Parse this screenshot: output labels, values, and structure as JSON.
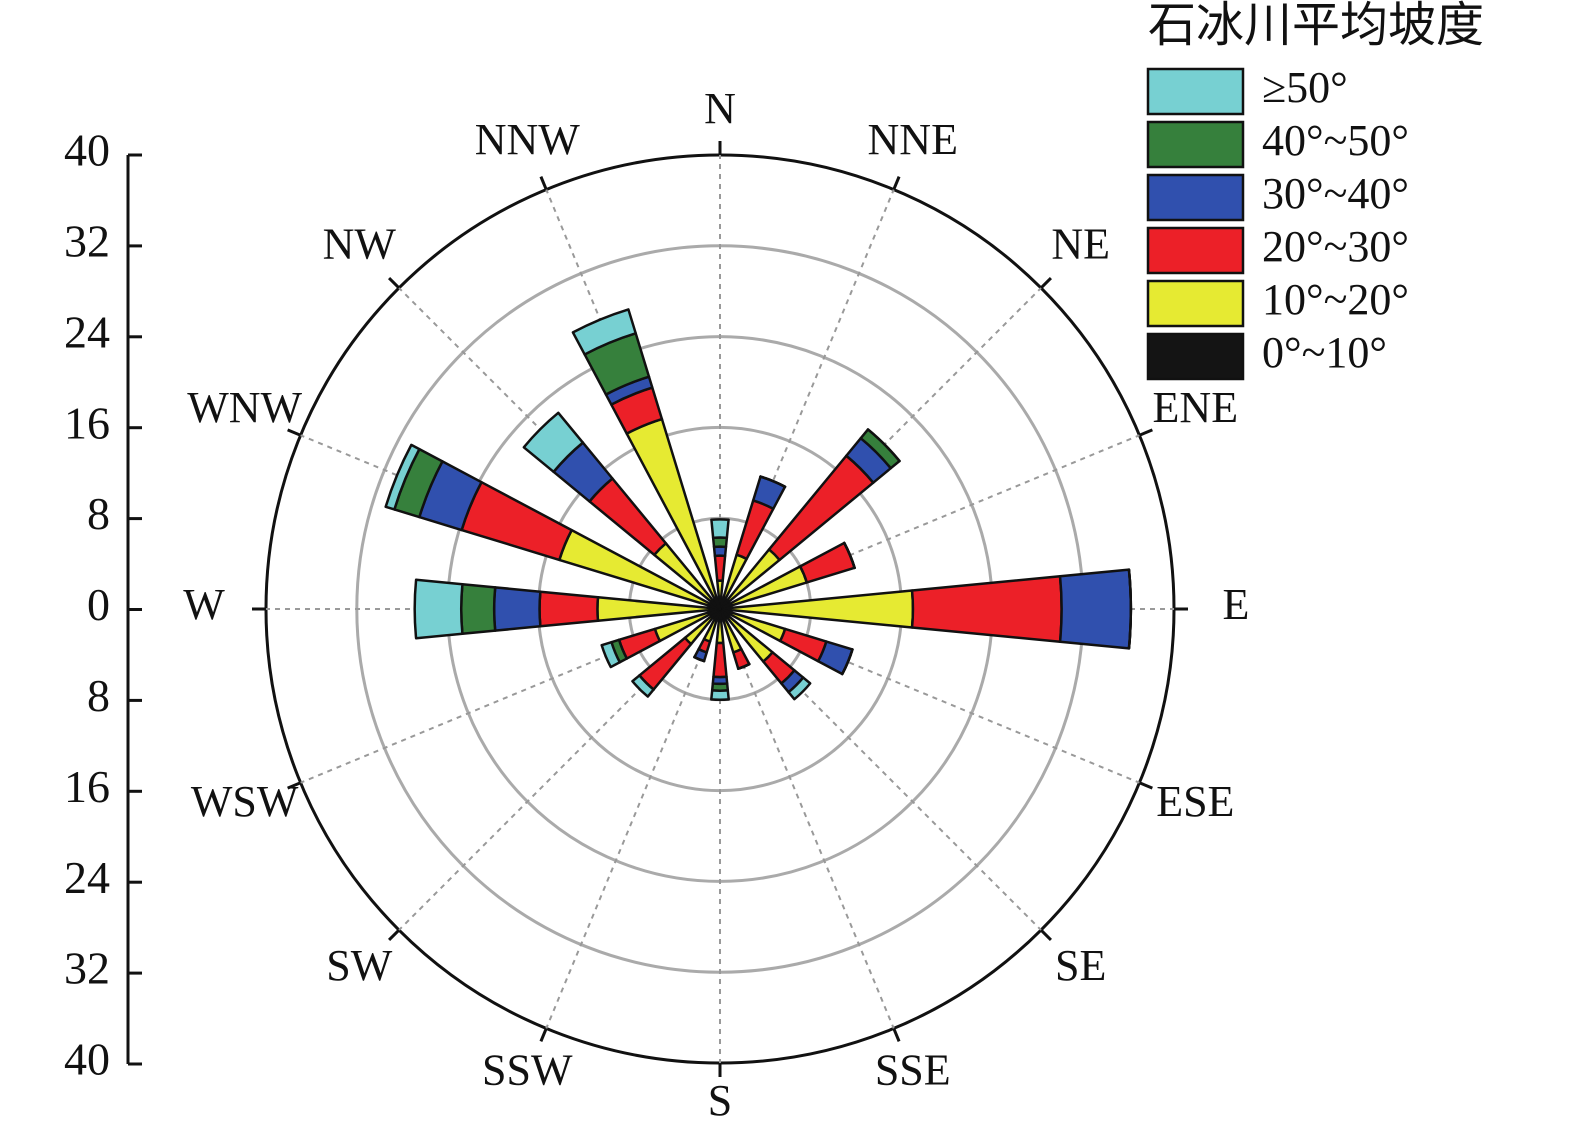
{
  "chart_data": {
    "type": "rose",
    "legend_title": "石冰川平均坡度",
    "categories": [
      "N",
      "NNE",
      "NE",
      "ENE",
      "E",
      "ESE",
      "SE",
      "SSE",
      "S",
      "SSW",
      "SW",
      "WSW",
      "W",
      "WNW",
      "NW",
      "NNW"
    ],
    "series": [
      {
        "name": "0°~10°",
        "color": "#141414",
        "values": [
          1,
          1,
          1,
          1,
          1,
          1,
          1,
          1,
          1,
          1,
          1,
          1,
          1,
          1,
          1,
          1
        ]
      },
      {
        "name": "10°~20°",
        "color": "#e6ea32",
        "values": [
          1.5,
          4,
          5.8,
          7,
          16,
          5,
          5,
          3,
          2,
          2,
          3,
          5,
          9.8,
          13.8,
          6.5,
          16.5
        ]
      },
      {
        "name": "20°~30°",
        "color": "#ec2028",
        "values": [
          2.2,
          5,
          10.7,
          4.4,
          13.1,
          3.8,
          2.5,
          1.5,
          3,
          1,
          5.2,
          3.3,
          5.1,
          9,
          7.4,
          2.9
        ]
      },
      {
        "name": "30°~40°",
        "color": "#3050ae",
        "values": [
          0.8,
          2.2,
          2,
          0,
          6.1,
          2.4,
          1,
          0,
          0.6,
          0.8,
          0,
          0,
          4,
          3.9,
          4.1,
          1
        ]
      },
      {
        "name": "40°~50°",
        "color": "#36803c",
        "values": [
          0.8,
          0,
          1,
          0,
          0,
          0,
          0,
          0,
          0.6,
          0,
          0,
          0.7,
          2.9,
          2.3,
          0,
          4
        ]
      },
      {
        "name": "≥50°",
        "color": "#77d0d2",
        "values": [
          1.6,
          0,
          0,
          0,
          0,
          0,
          0.8,
          0,
          0.8,
          0,
          0.8,
          0.9,
          4.1,
          0.8,
          3.4,
          2.2
        ]
      }
    ],
    "ylim": [
      -40,
      40
    ],
    "yticks": [
      {
        "value": -40,
        "label": "40"
      },
      {
        "value": -32,
        "label": "32"
      },
      {
        "value": -24,
        "label": "24"
      },
      {
        "value": -16,
        "label": "16"
      },
      {
        "value": -8,
        "label": "8"
      },
      0,
      8,
      16,
      24,
      32,
      40
    ],
    "grid": true
  }
}
